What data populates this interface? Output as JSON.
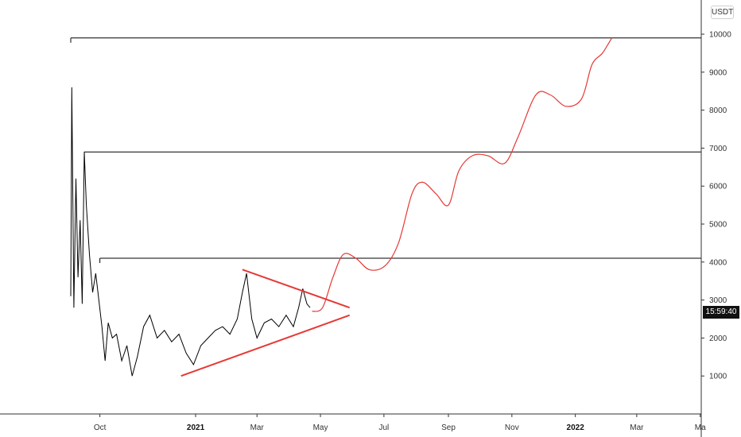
{
  "chart_data": {
    "type": "line",
    "currency": "USDT",
    "price_label": "15:59:40",
    "y_ticks": [
      1000,
      2000,
      3000,
      4000,
      5000,
      6000,
      7000,
      8000,
      9000,
      10000
    ],
    "y_tick_labels": [
      "1000",
      "2000",
      "3000",
      "4000",
      "5000",
      "6000",
      "7000",
      "8000",
      "9000",
      "10000"
    ],
    "ylim": [
      0,
      10900
    ],
    "x_ticks": [
      {
        "label": "Oct",
        "date": "2020-10-01",
        "bold": false
      },
      {
        "label": "2021",
        "date": "2021-01-01",
        "bold": true
      },
      {
        "label": "Mar",
        "date": "2021-03-01",
        "bold": false
      },
      {
        "label": "May",
        "date": "2021-05-01",
        "bold": false
      },
      {
        "label": "Jul",
        "date": "2021-07-01",
        "bold": false
      },
      {
        "label": "Sep",
        "date": "2021-09-01",
        "bold": false
      },
      {
        "label": "Nov",
        "date": "2021-11-01",
        "bold": false
      },
      {
        "label": "2022",
        "date": "2022-01-01",
        "bold": true
      },
      {
        "label": "Mar",
        "date": "2022-03-01",
        "bold": false
      },
      {
        "label": "Ma",
        "date": "2022-05-01",
        "bold": false
      }
    ],
    "xlim": [
      "2020-06-27",
      "2022-05-02"
    ],
    "price_series": [
      {
        "date": "2020-09-03",
        "value": 3100
      },
      {
        "date": "2020-09-04",
        "value": 8600
      },
      {
        "date": "2020-09-06",
        "value": 2800
      },
      {
        "date": "2020-09-08",
        "value": 6200
      },
      {
        "date": "2020-09-10",
        "value": 3600
      },
      {
        "date": "2020-09-12",
        "value": 5100
      },
      {
        "date": "2020-09-14",
        "value": 2900
      },
      {
        "date": "2020-09-16",
        "value": 6900
      },
      {
        "date": "2020-09-18",
        "value": 5500
      },
      {
        "date": "2020-09-21",
        "value": 4200
      },
      {
        "date": "2020-09-24",
        "value": 3200
      },
      {
        "date": "2020-09-27",
        "value": 3700
      },
      {
        "date": "2020-09-30",
        "value": 3000
      },
      {
        "date": "2020-10-03",
        "value": 2300
      },
      {
        "date": "2020-10-06",
        "value": 1400
      },
      {
        "date": "2020-10-09",
        "value": 2400
      },
      {
        "date": "2020-10-13",
        "value": 2000
      },
      {
        "date": "2020-10-17",
        "value": 2100
      },
      {
        "date": "2020-10-22",
        "value": 1400
      },
      {
        "date": "2020-10-27",
        "value": 1800
      },
      {
        "date": "2020-11-01",
        "value": 1000
      },
      {
        "date": "2020-11-06",
        "value": 1500
      },
      {
        "date": "2020-11-12",
        "value": 2300
      },
      {
        "date": "2020-11-18",
        "value": 2600
      },
      {
        "date": "2020-11-25",
        "value": 2000
      },
      {
        "date": "2020-12-02",
        "value": 2200
      },
      {
        "date": "2020-12-09",
        "value": 1900
      },
      {
        "date": "2020-12-16",
        "value": 2100
      },
      {
        "date": "2020-12-23",
        "value": 1600
      },
      {
        "date": "2020-12-30",
        "value": 1300
      },
      {
        "date": "2021-01-06",
        "value": 1800
      },
      {
        "date": "2021-01-13",
        "value": 2000
      },
      {
        "date": "2021-01-20",
        "value": 2200
      },
      {
        "date": "2021-01-27",
        "value": 2300
      },
      {
        "date": "2021-02-03",
        "value": 2100
      },
      {
        "date": "2021-02-10",
        "value": 2500
      },
      {
        "date": "2021-02-15",
        "value": 3200
      },
      {
        "date": "2021-02-19",
        "value": 3700
      },
      {
        "date": "2021-02-24",
        "value": 2500
      },
      {
        "date": "2021-03-01",
        "value": 2000
      },
      {
        "date": "2021-03-08",
        "value": 2400
      },
      {
        "date": "2021-03-15",
        "value": 2500
      },
      {
        "date": "2021-03-22",
        "value": 2300
      },
      {
        "date": "2021-03-29",
        "value": 2600
      },
      {
        "date": "2021-04-05",
        "value": 2300
      },
      {
        "date": "2021-04-10",
        "value": 2800
      },
      {
        "date": "2021-04-14",
        "value": 3300
      },
      {
        "date": "2021-04-18",
        "value": 2900
      },
      {
        "date": "2021-04-21",
        "value": 2800
      }
    ],
    "projection_series": [
      {
        "date": "2021-04-23",
        "value": 2700
      },
      {
        "date": "2021-05-03",
        "value": 2800
      },
      {
        "date": "2021-05-13",
        "value": 3600
      },
      {
        "date": "2021-05-23",
        "value": 4200
      },
      {
        "date": "2021-06-04",
        "value": 4100
      },
      {
        "date": "2021-06-17",
        "value": 3800
      },
      {
        "date": "2021-07-02",
        "value": 3900
      },
      {
        "date": "2021-07-15",
        "value": 4500
      },
      {
        "date": "2021-07-28",
        "value": 5800
      },
      {
        "date": "2021-08-07",
        "value": 6100
      },
      {
        "date": "2021-08-20",
        "value": 5800
      },
      {
        "date": "2021-09-01",
        "value": 5500
      },
      {
        "date": "2021-09-11",
        "value": 6400
      },
      {
        "date": "2021-09-24",
        "value": 6800
      },
      {
        "date": "2021-10-09",
        "value": 6800
      },
      {
        "date": "2021-10-25",
        "value": 6600
      },
      {
        "date": "2021-11-07",
        "value": 7300
      },
      {
        "date": "2021-11-24",
        "value": 8400
      },
      {
        "date": "2021-12-08",
        "value": 8400
      },
      {
        "date": "2021-12-23",
        "value": 8100
      },
      {
        "date": "2022-01-07",
        "value": 8300
      },
      {
        "date": "2022-01-17",
        "value": 9200
      },
      {
        "date": "2022-01-27",
        "value": 9500
      },
      {
        "date": "2022-02-05",
        "value": 9900
      }
    ],
    "horizontal_levels": [
      {
        "value": 9900,
        "from": "2020-09-03"
      },
      {
        "value": 6900,
        "from": "2020-09-16"
      },
      {
        "value": 4100,
        "from": "2020-10-01"
      }
    ],
    "triangle": {
      "upper": [
        {
          "date": "2021-02-15",
          "value": 3800
        },
        {
          "date": "2021-05-29",
          "value": 2800
        }
      ],
      "lower": [
        {
          "date": "2020-12-18",
          "value": 1000
        },
        {
          "date": "2021-05-29",
          "value": 2600
        }
      ]
    },
    "colors": {
      "price": "#000000",
      "projection": "#e53935",
      "triangle": "#e53935",
      "levels": "#000000",
      "axis": "#333333"
    }
  }
}
